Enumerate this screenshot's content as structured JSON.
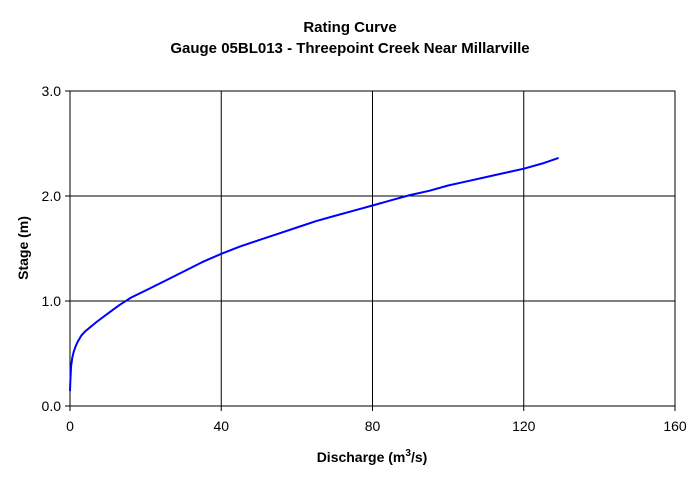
{
  "chart_data": {
    "type": "line",
    "title": "Rating Curve",
    "subtitle": "Gauge 05BL013 - Threepoint Creek Near Millarville",
    "xlabel_main": "Discharge (m",
    "xlabel_sup": "3",
    "xlabel_tail": "/s)",
    "ylabel": "Stage (m)",
    "xlim": [
      0,
      160
    ],
    "ylim": [
      0.0,
      3.0
    ],
    "x_ticks": [
      "0",
      "40",
      "80",
      "120",
      "160"
    ],
    "y_ticks": [
      "0.0",
      "1.0",
      "2.0",
      "3.0"
    ],
    "grid": true,
    "legend": "none",
    "series": [
      {
        "color": "#0000ff",
        "x": [
          0,
          0.1,
          0.3,
          0.6,
          1,
          1.5,
          2,
          3,
          4,
          5,
          7,
          10,
          13,
          16,
          20,
          25,
          30,
          35,
          40,
          45,
          50,
          55,
          60,
          65,
          70,
          75,
          80,
          85,
          90,
          95,
          100,
          105,
          110,
          115,
          120,
          125,
          129
        ],
        "y": [
          0.15,
          0.25,
          0.38,
          0.46,
          0.52,
          0.57,
          0.61,
          0.67,
          0.71,
          0.74,
          0.8,
          0.88,
          0.96,
          1.03,
          1.1,
          1.19,
          1.28,
          1.37,
          1.45,
          1.52,
          1.58,
          1.64,
          1.7,
          1.76,
          1.81,
          1.86,
          1.91,
          1.96,
          2.01,
          2.05,
          2.1,
          2.14,
          2.18,
          2.22,
          2.26,
          2.31,
          2.36
        ]
      }
    ]
  }
}
